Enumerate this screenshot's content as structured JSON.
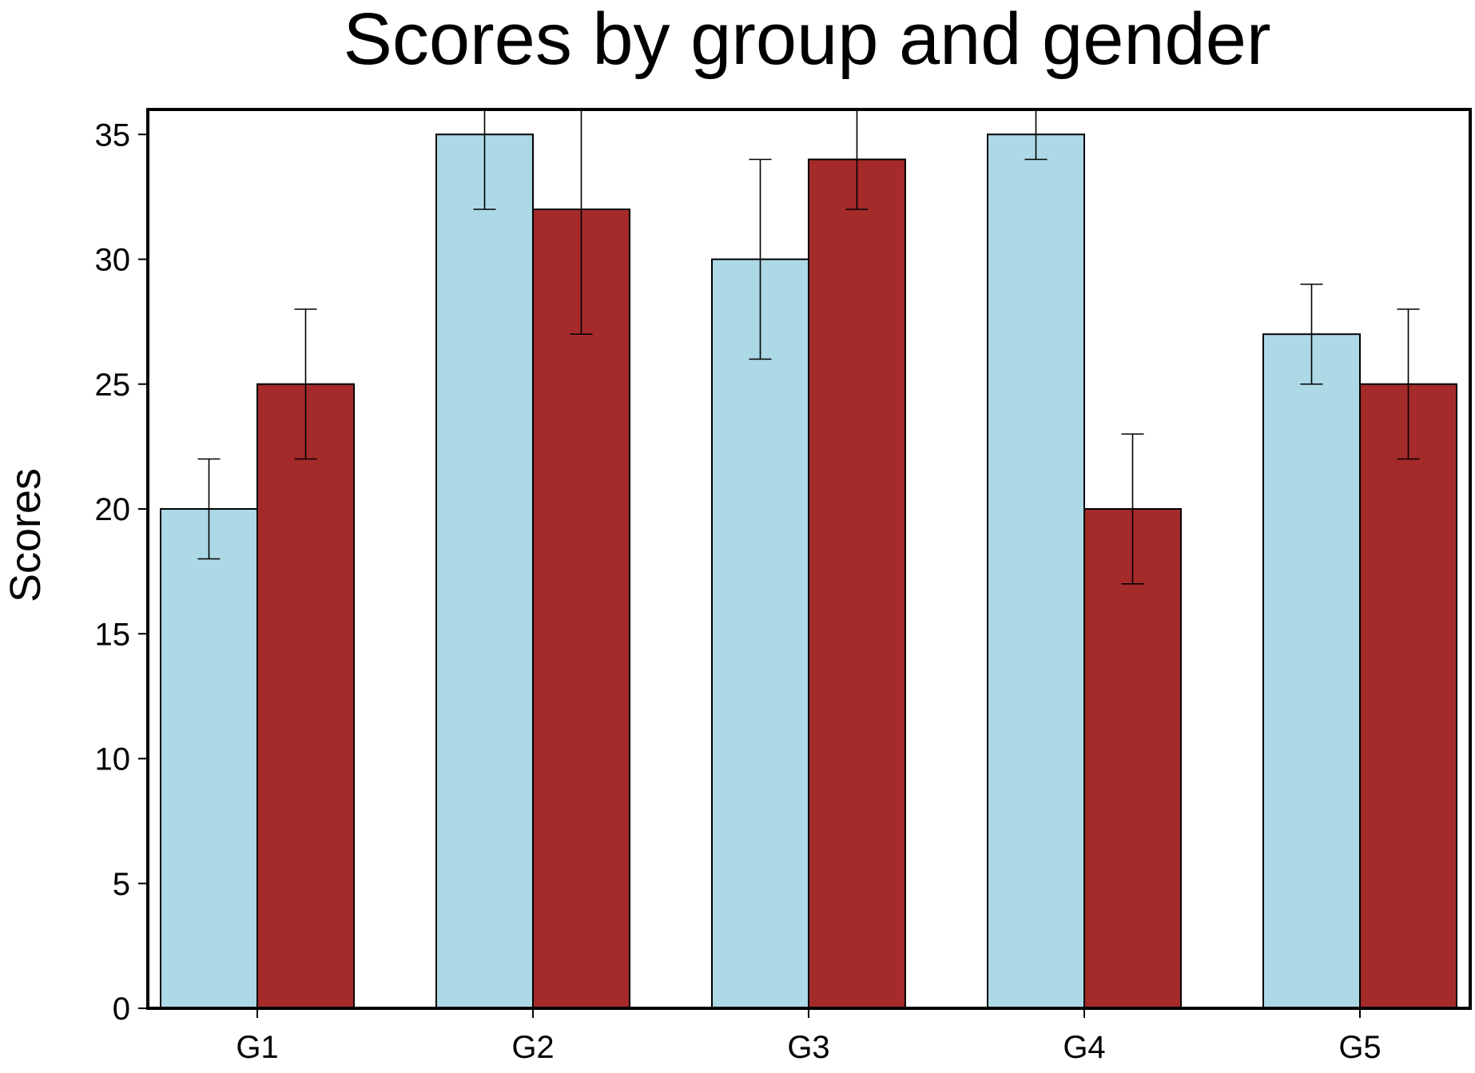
{
  "chart_data": {
    "type": "bar",
    "title": "Scores by group and gender",
    "xlabel": "",
    "ylabel": "Scores",
    "categories": [
      "G1",
      "G2",
      "G3",
      "G4",
      "G5"
    ],
    "series": [
      {
        "color": "#add8e6",
        "values": [
          20,
          35,
          30,
          35,
          27
        ],
        "error": [
          2,
          3,
          4,
          1,
          2
        ]
      },
      {
        "color": "#a52a2a",
        "values": [
          25,
          32,
          34,
          20,
          25
        ],
        "error": [
          3,
          5,
          2,
          3,
          3
        ]
      }
    ],
    "ylim": [
      0,
      36
    ],
    "yticks": [
      0,
      5,
      10,
      15,
      20,
      25,
      30,
      35
    ],
    "grid": false,
    "legend": "none"
  }
}
